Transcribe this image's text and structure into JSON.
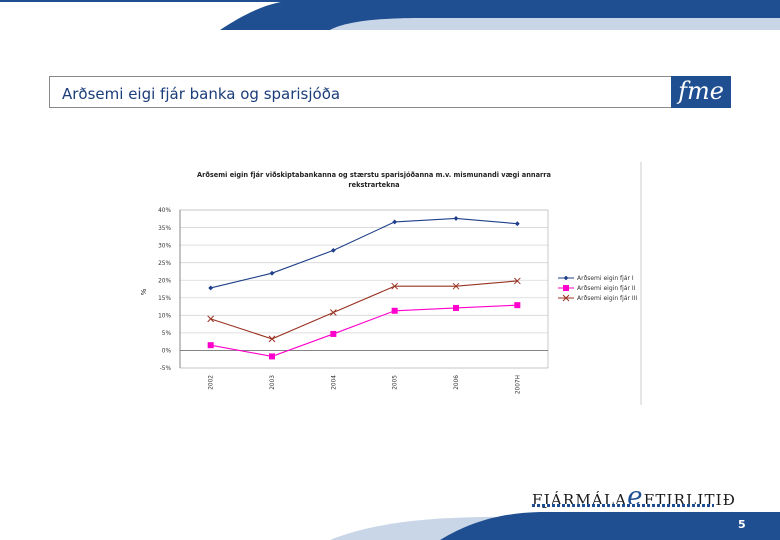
{
  "slide": {
    "title": "Arðsemi eigi fjár banka og sparisjóða",
    "logo_text": "fme",
    "brand": {
      "pre": "FJÁRMÁLA",
      "e": "e",
      "post": "FTIRLITIÐ"
    },
    "page_number": "5"
  },
  "colors": {
    "navy": "#1f4f91",
    "light_blue": "#c9d6e8",
    "series1": "#1f3f8a",
    "series2": "#ff00cc",
    "series3": "#993322"
  },
  "chart_data": {
    "type": "line",
    "title": "Arðsemi eigin fjár viðskiptabankanna og stærstu sparisjóðanna m.v. mismunandi vægi annarra rekstrartekna",
    "title_lines": [
      "Arðsemi eigin fjár viðskiptabankanna og stærstu sparisjóðanna m.v. mismunandi vægi annarra",
      "rekstrartekna"
    ],
    "ylabel": "%",
    "xlabel": "",
    "categories": [
      "2002",
      "2003",
      "2004",
      "2005",
      "2006",
      "2007H"
    ],
    "ylim": [
      -5,
      40
    ],
    "yticks": [
      40,
      35,
      30,
      25,
      20,
      15,
      10,
      5,
      0,
      -5
    ],
    "ytick_labels": [
      "40%",
      "35%",
      "30%",
      "25%",
      "20%",
      "15%",
      "10%",
      "5%",
      "0%",
      "-5%"
    ],
    "grid": true,
    "legend": "right",
    "series": [
      {
        "name": "Arðsemi eigin fjár I",
        "values": [
          17.8,
          22.0,
          28.5,
          36.6,
          37.6,
          36.1
        ],
        "marker": "diamond"
      },
      {
        "name": "Arðsemi eigin fjár II",
        "values": [
          1.5,
          -1.7,
          4.7,
          11.3,
          12.1,
          12.9
        ],
        "marker": "square"
      },
      {
        "name": "Arðsemi eigin fjár III",
        "values": [
          9.0,
          3.3,
          10.8,
          18.3,
          18.3,
          19.8
        ],
        "marker": "x"
      }
    ]
  }
}
